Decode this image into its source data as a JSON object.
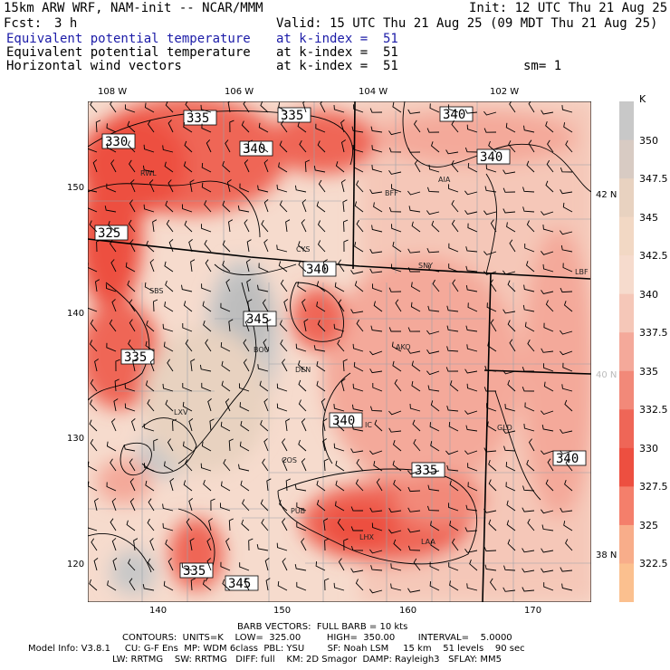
{
  "header": {
    "model": "15km ARW WRF, NAM-init -- NCAR/MMM",
    "init": "Init: 12 UTC Thu 21 Aug 25",
    "fcst_label": "Fcst:",
    "fcst_value": "3 h",
    "valid": "Valid: 15 UTC Thu 21 Aug 25 (09 MDT Thu 21 Aug 25)",
    "fields": [
      {
        "name": "Equivalent potential temperature",
        "level": "at k-index =  51"
      },
      {
        "name": "Equivalent potential temperature",
        "level": "at k-index =  51"
      },
      {
        "name": "Horizontal wind vectors",
        "level": "at k-index =  51"
      }
    ],
    "smoothing": "sm= 1"
  },
  "map": {
    "lon_labels": [
      "108 W",
      "106 W",
      "104 W",
      "102 W"
    ],
    "lat_labels": [
      "42 N",
      "40 N",
      "38 N"
    ],
    "y_grid_labels": [
      "150",
      "140",
      "130",
      "120"
    ],
    "x_grid_labels": [
      "140",
      "150",
      "160",
      "170"
    ],
    "stations": [
      "RWL",
      "CYS",
      "SNY",
      "BFF",
      "AIA",
      "LBF",
      "SBS",
      "BOU",
      "DEN",
      "AKO",
      "LXV",
      "IC",
      "GLD",
      "COS",
      "PUB",
      "LHX",
      "LAA"
    ],
    "contour_labels": [
      "335",
      "335",
      "340",
      "330",
      "340",
      "340",
      "325",
      "340",
      "345",
      "335",
      "340",
      "335",
      "340",
      "335",
      "345"
    ]
  },
  "colorbar": {
    "unit": "K",
    "labels": [
      "350",
      "347.5",
      "345",
      "342.5",
      "340",
      "337.5",
      "335",
      "332.5",
      "330",
      "327.5",
      "325",
      "322.5"
    ],
    "colors": [
      "#c8c8c8",
      "#d8cbc3",
      "#e8d2c0",
      "#f2d8c4",
      "#f6dbcd",
      "#f5c7b8",
      "#f4a99a",
      "#f28979",
      "#ef6657",
      "#ed4f40",
      "#f47f6b",
      "#f8ad8a",
      "#fbc08f"
    ]
  },
  "footer": {
    "line1": "BARB VECTORS:  FULL BARB = 10 kts",
    "line2": "CONTOURS:  UNITS=K    LOW=  325.00         HIGH=  350.00        INTERVAL=    5.0000",
    "line3": "Model Info: V3.8.1     CU: G-F Ens  MP: WDM 6class  PBL: YSU        SF: Noah LSM     15 km    51 levels    90 sec",
    "line4": "LW: RRTMG    SW: RRTMG   DIFF: full    KM: 2D Smagor  DAMP: Rayleigh3   SFLAY: MM5"
  }
}
